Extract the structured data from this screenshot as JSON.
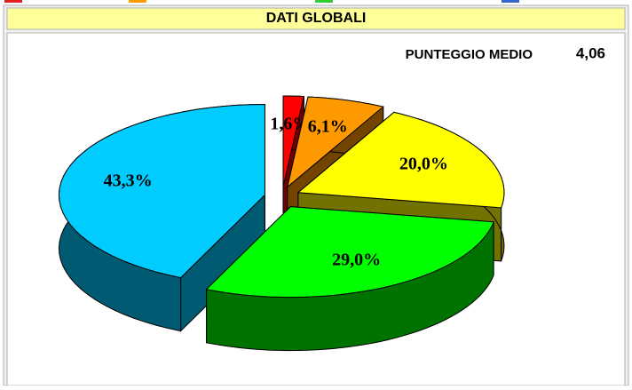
{
  "chart_data": {
    "type": "pie",
    "title": "DATI GLOBALI",
    "average_label": "PUNTEGGIO MEDIO",
    "average_value": "4,06",
    "values": [
      1.6,
      6.1,
      20.0,
      29.0,
      43.3
    ],
    "value_labels": [
      "1,6%",
      "6,1%",
      "20,0%",
      "29,0%",
      "43,3%"
    ],
    "colors": [
      "#ff0000",
      "#ff9900",
      "#ffff00",
      "#00ff00",
      "#00ccff"
    ]
  }
}
